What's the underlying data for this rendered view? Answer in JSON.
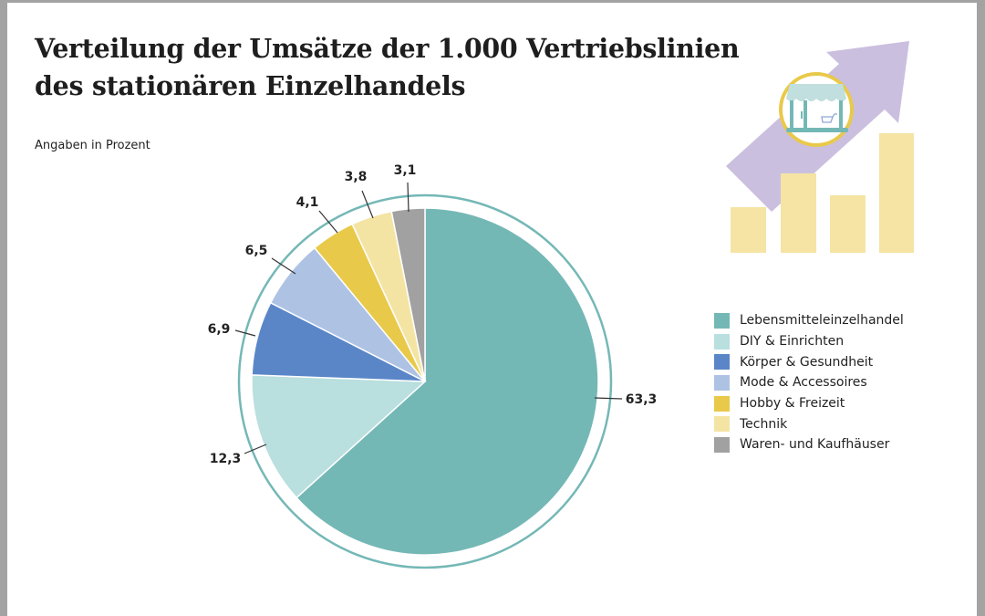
{
  "chart_data": {
    "type": "pie",
    "title": "Verteilung der Umsätze der 1.000 Vertriebslinien des stationären Einzelhandels",
    "title_lines": [
      "Verteilung der Umsätze der 1.000 Vertriebslinien",
      "des stationären Einzelhandels"
    ],
    "subtitle": "Angaben in Prozent",
    "legend_position": "right",
    "slices": [
      {
        "name": "Lebensmitteleinzelhandel",
        "value": 63.3,
        "label": "63,3",
        "color": "#74b8b6"
      },
      {
        "name": "DIY & Einrichten",
        "value": 12.3,
        "label": "12,3",
        "color": "#b9dfde"
      },
      {
        "name": "Körper & Gesundheit",
        "value": 6.9,
        "label": "6,9",
        "color": "#5a86c8"
      },
      {
        "name": "Mode & Accessoires",
        "value": 6.5,
        "label": "6,5",
        "color": "#aec3e4"
      },
      {
        "name": "Hobby & Freizeit",
        "value": 4.1,
        "label": "4,1",
        "color": "#e9c94a"
      },
      {
        "name": "Technik",
        "value": 3.8,
        "label": "3,8",
        "color": "#f4e4a4"
      },
      {
        "name": "Waren- und Kaufhäuser",
        "value": 3.1,
        "label": "3,1",
        "color": "#a1a1a1"
      }
    ],
    "ring_color": "#74b8b6"
  },
  "decoration": {
    "icon": "store-growth-illustration",
    "arrow_color": "#cbbfdf",
    "bar_color": "#f5e4a3",
    "circle_color": "#e9c94a"
  }
}
